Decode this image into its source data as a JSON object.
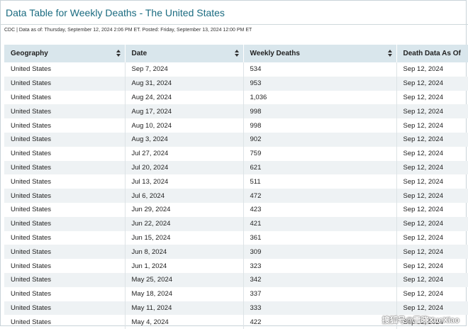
{
  "header": {
    "title": "Data Table for Weekly Deaths - The United States",
    "meta": "CDC | Data as of: Thursday, September 12, 2024 2:06 PM ET. Posted: Friday, September 13, 2024 12:00 PM ET"
  },
  "table": {
    "columns": [
      "Geography",
      "Date",
      "Weekly Deaths",
      "Death Data As Of"
    ],
    "rows": [
      [
        "United States",
        "Sep 7, 2024",
        "534",
        "Sep 12, 2024"
      ],
      [
        "United States",
        "Aug 31, 2024",
        "953",
        "Sep 12, 2024"
      ],
      [
        "United States",
        "Aug 24, 2024",
        "1,036",
        "Sep 12, 2024"
      ],
      [
        "United States",
        "Aug 17, 2024",
        "998",
        "Sep 12, 2024"
      ],
      [
        "United States",
        "Aug 10, 2024",
        "998",
        "Sep 12, 2024"
      ],
      [
        "United States",
        "Aug 3, 2024",
        "902",
        "Sep 12, 2024"
      ],
      [
        "United States",
        "Jul 27, 2024",
        "759",
        "Sep 12, 2024"
      ],
      [
        "United States",
        "Jul 20, 2024",
        "621",
        "Sep 12, 2024"
      ],
      [
        "United States",
        "Jul 13, 2024",
        "511",
        "Sep 12, 2024"
      ],
      [
        "United States",
        "Jul 6, 2024",
        "472",
        "Sep 12, 2024"
      ],
      [
        "United States",
        "Jun 29, 2024",
        "423",
        "Sep 12, 2024"
      ],
      [
        "United States",
        "Jun 22, 2024",
        "421",
        "Sep 12, 2024"
      ],
      [
        "United States",
        "Jun 15, 2024",
        "361",
        "Sep 12, 2024"
      ],
      [
        "United States",
        "Jun 8, 2024",
        "309",
        "Sep 12, 2024"
      ],
      [
        "United States",
        "Jun 1, 2024",
        "323",
        "Sep 12, 2024"
      ],
      [
        "United States",
        "May 25, 2024",
        "342",
        "Sep 12, 2024"
      ],
      [
        "United States",
        "May 18, 2024",
        "337",
        "Sep 12, 2024"
      ],
      [
        "United States",
        "May 11, 2024",
        "333",
        "Sep 12, 2024"
      ],
      [
        "United States",
        "May 4, 2024",
        "422",
        "Sep 12, 2024"
      ]
    ]
  },
  "watermark": "搜狐号@雪晓XueXiao",
  "colors": {
    "title": "#1a6b80",
    "header_bg": "#d9e6ec",
    "stripe_bg": "#eef2f4"
  }
}
